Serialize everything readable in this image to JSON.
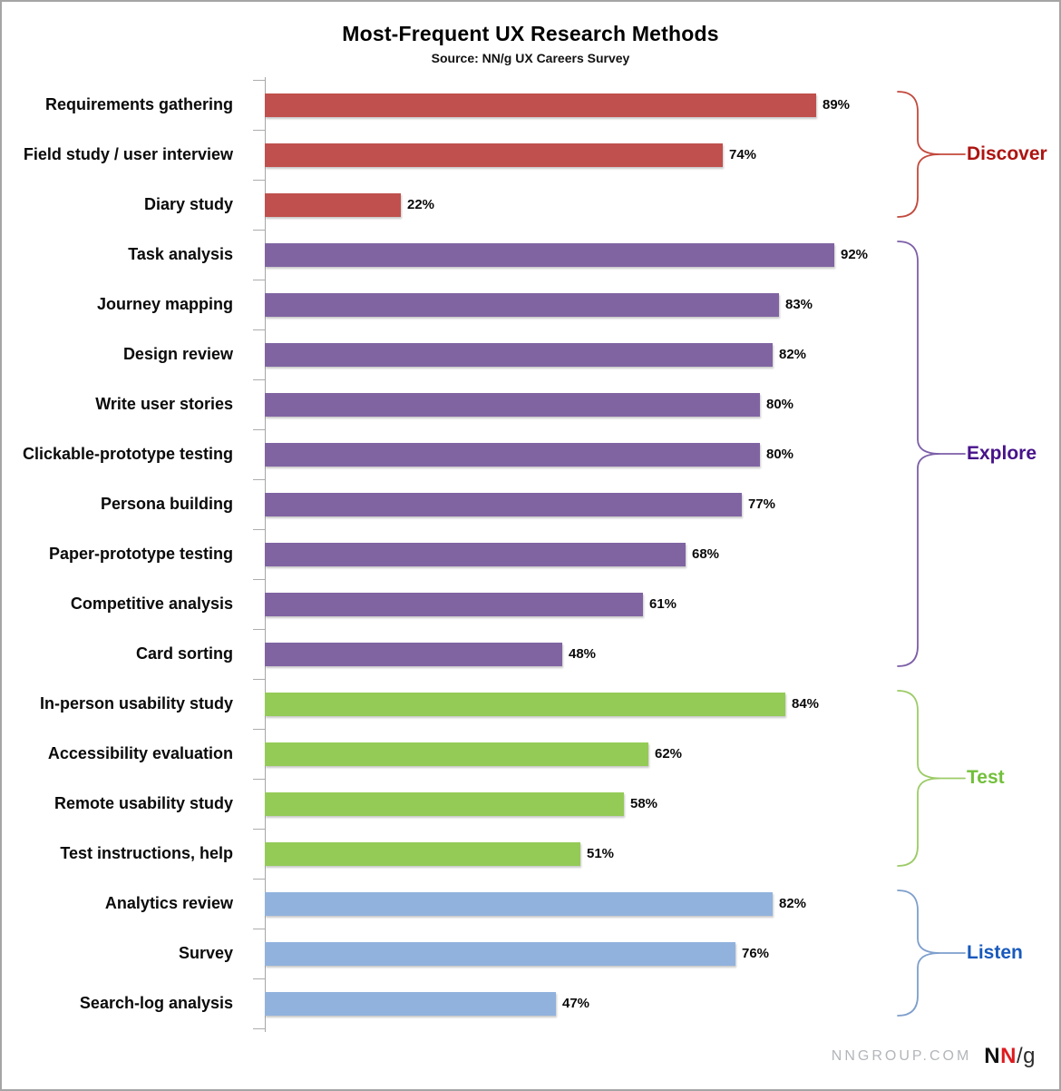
{
  "header": {
    "title": "Most-Frequent UX Research Methods",
    "source": "Source: NN/g UX Careers Survey"
  },
  "footer": {
    "site": "NNGROUP.COM",
    "logo_n1": "N",
    "logo_n2": "N",
    "logo_slash_g": "/g"
  },
  "chart_data": {
    "type": "bar",
    "orientation": "horizontal",
    "title": "Most-Frequent UX Research Methods",
    "subtitle": "Source: NN/g UX Careers Survey",
    "value_suffix": "%",
    "xlim": [
      0,
      100
    ],
    "axis_color": "#a6a6a6",
    "grid": false,
    "legend_position": "right-braces",
    "groups": [
      {
        "name": "Discover",
        "bar_color": "#c0504d",
        "brace_color": "#c2493d",
        "label_color": "#ad1411",
        "items": [
          {
            "label": "Requirements gathering",
            "value": 89
          },
          {
            "label": "Field study / user interview",
            "value": 74
          },
          {
            "label": "Diary study",
            "value": 22
          }
        ]
      },
      {
        "name": "Explore",
        "bar_color": "#8064a2",
        "brace_color": "#7c5fa8",
        "label_color": "#47128a",
        "items": [
          {
            "label": "Task analysis",
            "value": 92
          },
          {
            "label": "Journey mapping",
            "value": 83
          },
          {
            "label": "Design review",
            "value": 82
          },
          {
            "label": "Write user stories",
            "value": 80
          },
          {
            "label": "Clickable-prototype testing",
            "value": 80
          },
          {
            "label": "Persona building",
            "value": 77
          },
          {
            "label": "Paper-prototype testing",
            "value": 68
          },
          {
            "label": "Competitive analysis",
            "value": 61
          },
          {
            "label": "Card sorting",
            "value": 48
          }
        ]
      },
      {
        "name": "Test",
        "bar_color": "#94cb57",
        "brace_color": "#9ccb67",
        "label_color": "#72bf3a",
        "items": [
          {
            "label": "In-person usability study",
            "value": 84
          },
          {
            "label": "Accessibility evaluation",
            "value": 62
          },
          {
            "label": "Remote usability study",
            "value": 58
          },
          {
            "label": "Test instructions, help",
            "value": 51
          }
        ]
      },
      {
        "name": "Listen",
        "bar_color": "#91b2dd",
        "brace_color": "#7e9fcc",
        "label_color": "#1859bc",
        "items": [
          {
            "label": "Analytics review",
            "value": 82
          },
          {
            "label": "Survey",
            "value": 76
          },
          {
            "label": "Search-log analysis",
            "value": 47
          }
        ]
      }
    ]
  }
}
